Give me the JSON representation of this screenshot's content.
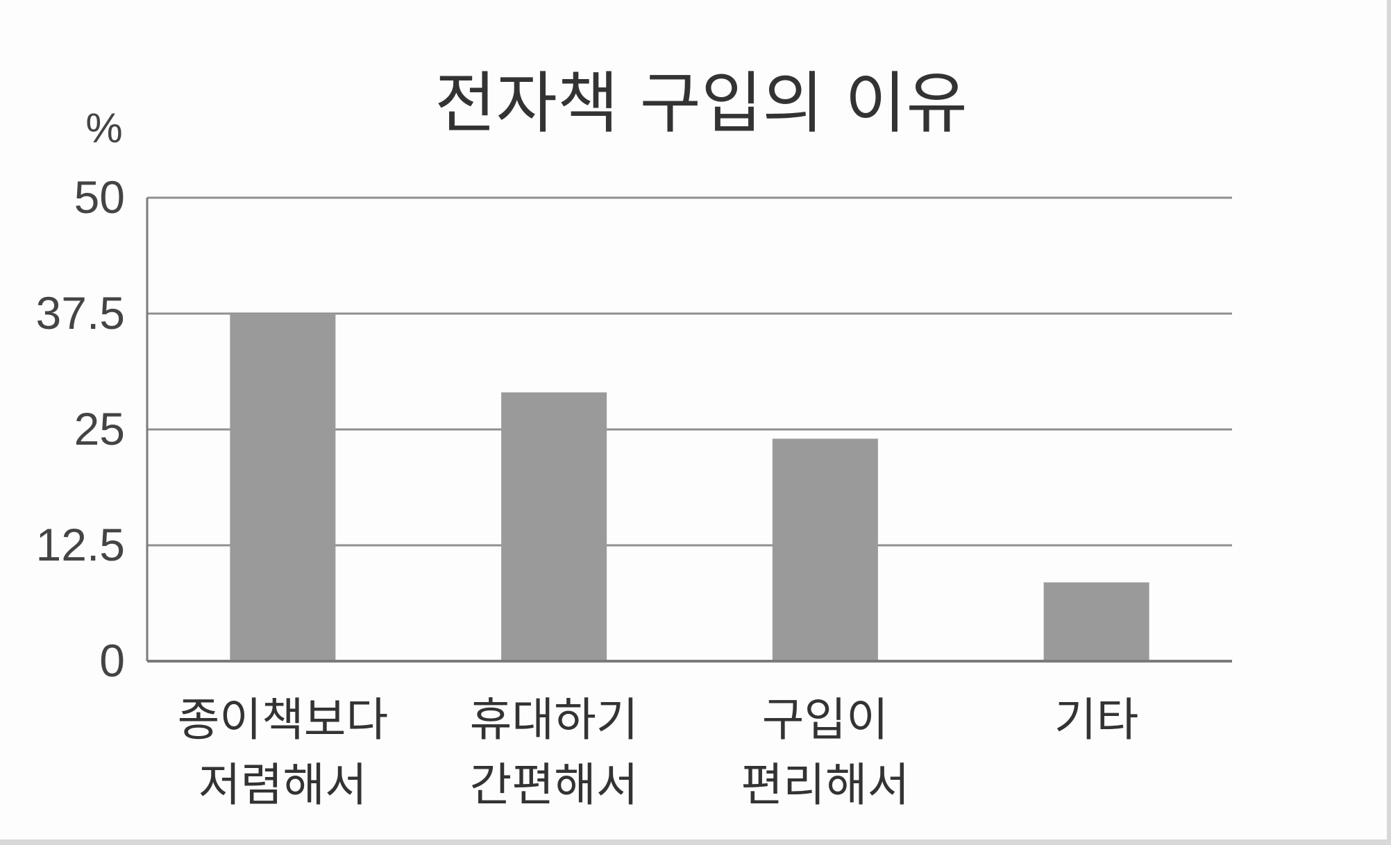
{
  "chart_data": {
    "type": "bar",
    "title": "전자책 구입의 이유",
    "ylabel": "%",
    "xlabel": "",
    "ylim": [
      0,
      50
    ],
    "yticks": [
      "0",
      "12.5",
      "25",
      "37.5",
      "50"
    ],
    "grid": true,
    "categories": [
      [
        "종이책보다",
        "저렴해서"
      ],
      [
        "휴대하기",
        "간편해서"
      ],
      [
        "구입이",
        "편리해서"
      ],
      [
        "기타"
      ]
    ],
    "values": [
      37.5,
      29,
      24,
      8.5
    ],
    "colors": {
      "bar": "#9a9a9a",
      "grid": "#8f8f8f",
      "axis": "#7a7a7a"
    }
  }
}
